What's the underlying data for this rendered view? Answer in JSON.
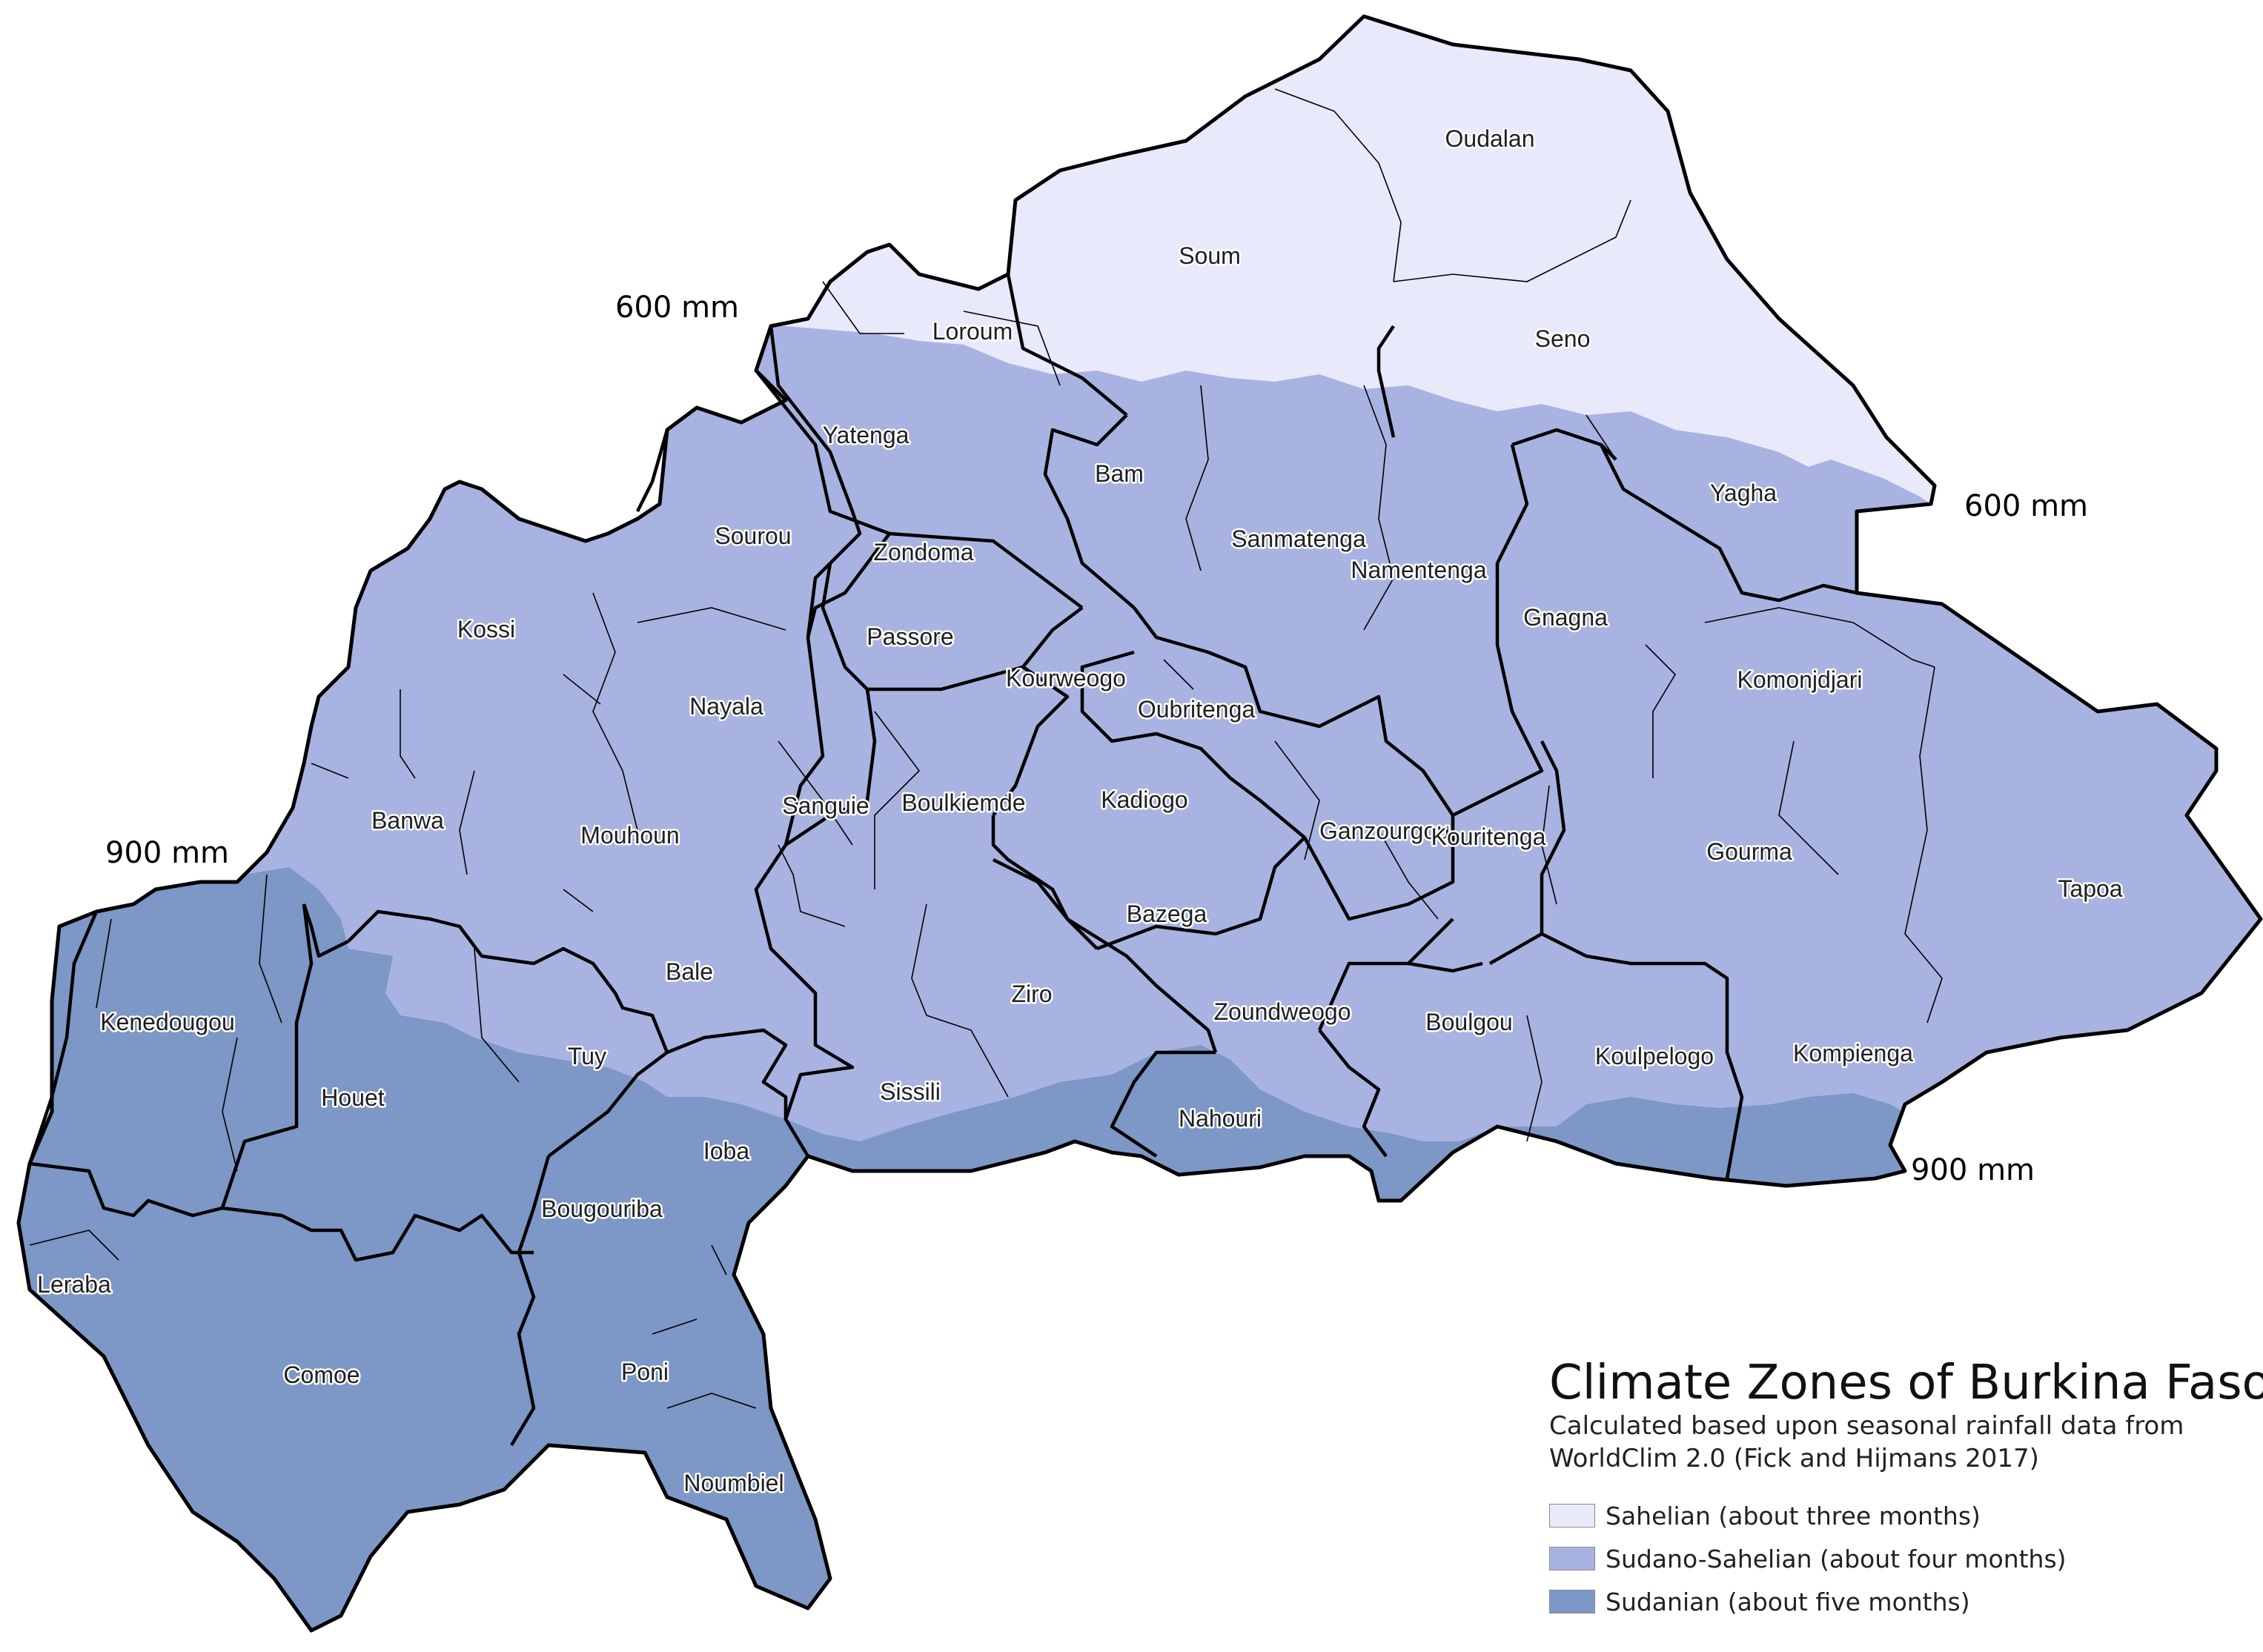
{
  "colors": {
    "sahelian": "#e8e9fb",
    "sudano_sahelian": "#a9b3e1",
    "sudanian": "#7d97c6",
    "border": "#000000"
  },
  "legend": {
    "title": "Climate Zones of Burkina Faso",
    "subtitle_line1": "Calculated based upon seasonal rainfall data from",
    "subtitle_line2": "WorldClim 2.0 (Fick and Hijmans 2017)",
    "items": [
      {
        "label": "Sahelian (about three months)",
        "color": "#e8e9fb"
      },
      {
        "label": "Sudano-Sahelian (about four months)",
        "color": "#a9b3e1"
      },
      {
        "label": "Sudanian (about five months)",
        "color": "#7d97c6"
      }
    ]
  },
  "isohyets": [
    {
      "label": "600 mm"
    },
    {
      "label": "600 mm"
    },
    {
      "label": "900 mm"
    },
    {
      "label": "900 mm"
    }
  ],
  "provinces": [
    "Oudalan",
    "Soum",
    "Seno",
    "Loroum",
    "Yatenga",
    "Bam",
    "Sanmatenga",
    "Namentenga",
    "Yagha",
    "Sourou",
    "Zondoma",
    "Kossi",
    "Passore",
    "Gnagna",
    "Komonjdjari",
    "Kourweogo",
    "Oubritenga",
    "Nayala",
    "Sanguie",
    "Boulkiemde",
    "Kadiogo",
    "Ganzourgou",
    "Kouritenga",
    "Gourma",
    "Tapoa",
    "Banwa",
    "Mouhoun",
    "Bazega",
    "Bale",
    "Ziro",
    "Zoundweogo",
    "Boulgou",
    "Koulpelogo",
    "Kompienga",
    "Kenedougou",
    "Houet",
    "Tuy",
    "Sissili",
    "Nahouri",
    "Ioba",
    "Bougouriba",
    "Leraba",
    "Comoe",
    "Poni",
    "Noumbiel"
  ]
}
